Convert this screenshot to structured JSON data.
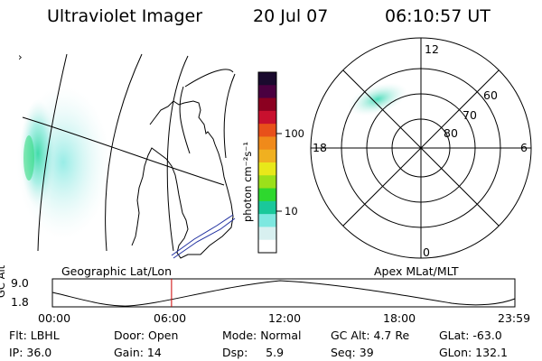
{
  "header": {
    "title": "Ultraviolet Imager",
    "date": "20 Jul 07",
    "time": "06:10:57 UT"
  },
  "map": {
    "north_marker": "›"
  },
  "colorbar": {
    "unit_label": "photon cm⁻²s⁻¹",
    "ticks": [
      "100",
      "10"
    ],
    "colors": [
      "#1a0a2e",
      "#4a0040",
      "#8b0020",
      "#c8102e",
      "#e8501a",
      "#f08a1a",
      "#f0b020",
      "#e8e81a",
      "#9be01a",
      "#2ed82e",
      "#1ac89a",
      "#7ee8e0",
      "#d8f0f0",
      "#ffffff"
    ]
  },
  "polar": {
    "top_label": "12",
    "bottom_label": "0",
    "left_label": "18",
    "right_label": "6",
    "ring_labels": [
      "60",
      "70",
      "80"
    ]
  },
  "timeline": {
    "left_caption": "Geographic Lat/Lon",
    "right_caption": "Apex MLat/MLT",
    "y_axis_label": "GC Alt",
    "y_ticks": [
      "9.0",
      "1.8"
    ],
    "x_ticks": [
      "00:00",
      "06:00",
      "12:00",
      "18:00",
      "23:59"
    ],
    "current_time_fraction": 0.2576,
    "marker_color": "#cc0000"
  },
  "status": {
    "flt": "Flt: LBHL",
    "door": "Door: Open",
    "mode": "Mode: Normal",
    "gc_alt": "GC Alt: 4.7 Re",
    "glat": "GLat: -63.0",
    "ip": "IP: 36.0",
    "gain": "Gain: 14",
    "dsp": "Dsp:     5.9",
    "seq": "Seq: 39",
    "glon": "GLon: 132.1"
  }
}
